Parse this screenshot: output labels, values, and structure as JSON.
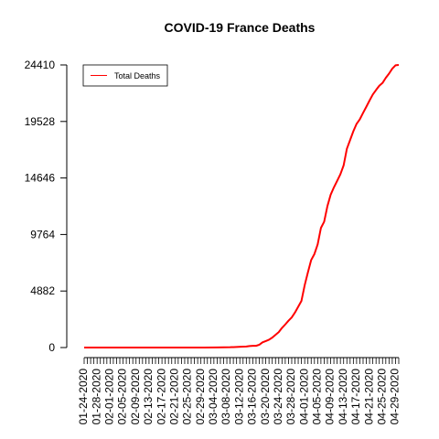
{
  "chart_data": {
    "type": "line",
    "title": "COVID-19 France Deaths",
    "xlabel": "",
    "ylabel": "",
    "ylim": [
      0,
      24410
    ],
    "yticks": [
      0,
      4882,
      9764,
      14646,
      19528,
      24410
    ],
    "xtick_labels": [
      "01-24-2020",
      "01-28-2020",
      "02-01-2020",
      "02-05-2020",
      "02-09-2020",
      "02-13-2020",
      "02-17-2020",
      "02-21-2020",
      "02-25-2020",
      "02-29-2020",
      "03-04-2020",
      "03-08-2020",
      "03-12-2020",
      "03-16-2020",
      "03-20-2020",
      "03-24-2020",
      "03-28-2020",
      "04-01-2020",
      "04-05-2020",
      "04-09-2020",
      "04-13-2020",
      "04-17-2020",
      "04-21-2020",
      "04-25-2020",
      "04-29-2020"
    ],
    "legend": {
      "position": "top-left",
      "entries": [
        "Total Deaths"
      ]
    },
    "series": [
      {
        "name": "Total Deaths",
        "color": "#ff0000",
        "start_date": "01-24-2020",
        "end_date": "04-30-2020",
        "points": [
          {
            "date": "01-24-2020",
            "value": 0
          },
          {
            "date": "02-15-2020",
            "value": 1
          },
          {
            "date": "03-01-2020",
            "value": 2
          },
          {
            "date": "03-05-2020",
            "value": 6
          },
          {
            "date": "03-09-2020",
            "value": 25
          },
          {
            "date": "03-11-2020",
            "value": 48
          },
          {
            "date": "03-13-2020",
            "value": 79
          },
          {
            "date": "03-14-2020",
            "value": 91
          },
          {
            "date": "03-15-2020",
            "value": 127
          },
          {
            "date": "03-16-2020",
            "value": 148
          },
          {
            "date": "03-17-2020",
            "value": 148
          },
          {
            "date": "03-18-2020",
            "value": 243
          },
          {
            "date": "03-19-2020",
            "value": 450
          },
          {
            "date": "03-20-2020",
            "value": 562
          },
          {
            "date": "03-21-2020",
            "value": 674
          },
          {
            "date": "03-22-2020",
            "value": 860
          },
          {
            "date": "03-23-2020",
            "value": 1100
          },
          {
            "date": "03-24-2020",
            "value": 1331
          },
          {
            "date": "03-25-2020",
            "value": 1696
          },
          {
            "date": "03-26-2020",
            "value": 1995
          },
          {
            "date": "03-27-2020",
            "value": 2314
          },
          {
            "date": "03-28-2020",
            "value": 2606
          },
          {
            "date": "03-29-2020",
            "value": 3024
          },
          {
            "date": "03-30-2020",
            "value": 3523
          },
          {
            "date": "03-31-2020",
            "value": 4032
          },
          {
            "date": "04-01-2020",
            "value": 5387
          },
          {
            "date": "04-02-2020",
            "value": 6507
          },
          {
            "date": "04-03-2020",
            "value": 7560
          },
          {
            "date": "04-04-2020",
            "value": 8078
          },
          {
            "date": "04-05-2020",
            "value": 8911
          },
          {
            "date": "04-06-2020",
            "value": 10328
          },
          {
            "date": "04-07-2020",
            "value": 10869
          },
          {
            "date": "04-08-2020",
            "value": 12210
          },
          {
            "date": "04-09-2020",
            "value": 13197
          },
          {
            "date": "04-10-2020",
            "value": 13832
          },
          {
            "date": "04-11-2020",
            "value": 14393
          },
          {
            "date": "04-12-2020",
            "value": 14967
          },
          {
            "date": "04-13-2020",
            "value": 15729
          },
          {
            "date": "04-14-2020",
            "value": 17167
          },
          {
            "date": "04-15-2020",
            "value": 17920
          },
          {
            "date": "04-16-2020",
            "value": 18681
          },
          {
            "date": "04-17-2020",
            "value": 19323
          },
          {
            "date": "04-18-2020",
            "value": 19718
          },
          {
            "date": "04-19-2020",
            "value": 20265
          },
          {
            "date": "04-20-2020",
            "value": 20796
          },
          {
            "date": "04-21-2020",
            "value": 21340
          },
          {
            "date": "04-22-2020",
            "value": 21856
          },
          {
            "date": "04-23-2020",
            "value": 22245
          },
          {
            "date": "04-24-2020",
            "value": 22614
          },
          {
            "date": "04-25-2020",
            "value": 22856
          },
          {
            "date": "04-26-2020",
            "value": 23293
          },
          {
            "date": "04-27-2020",
            "value": 23660
          },
          {
            "date": "04-28-2020",
            "value": 24087
          },
          {
            "date": "04-29-2020",
            "value": 24376
          },
          {
            "date": "04-30-2020",
            "value": 24410
          }
        ]
      }
    ]
  }
}
